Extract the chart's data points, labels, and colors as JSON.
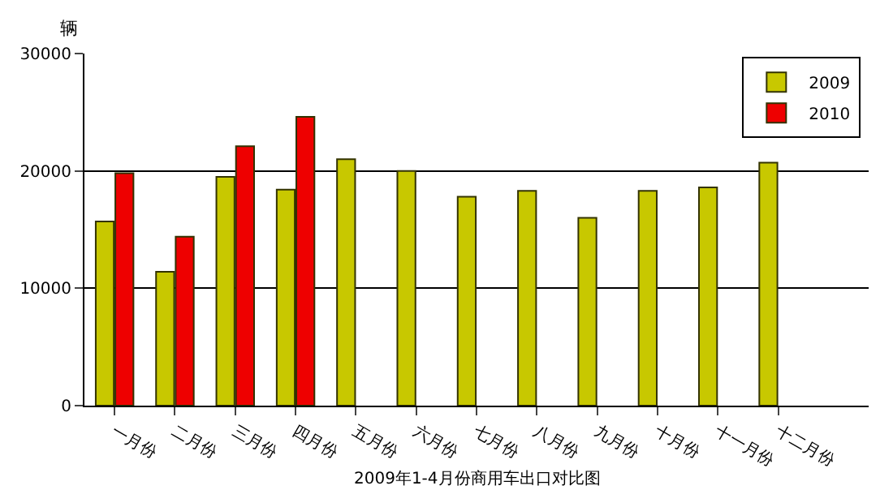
{
  "chart_data": {
    "type": "bar",
    "xlabel": "2009年1-4月份商用车出口对比图",
    "ylabel": "辆",
    "categories": [
      "一月份",
      "二月份",
      "三月份",
      "四月份",
      "五月份",
      "六月份",
      "七月份",
      "八月份",
      "九月份",
      "十月份",
      "十一月份",
      "十二月份",
      null
    ],
    "series": [
      {
        "name": "2009",
        "color": "#c8c800",
        "values": [
          15700,
          11400,
          19500,
          18400,
          21000,
          20000,
          17800,
          18300,
          16000,
          18300,
          18600,
          20700,
          null
        ]
      },
      {
        "name": "2010",
        "color": "#ee0000",
        "values": [
          19800,
          14400,
          22100,
          24600,
          null,
          null,
          null,
          null,
          null,
          null,
          null,
          null,
          null
        ]
      }
    ],
    "ylim": [
      0,
      30000
    ],
    "yticks": [
      0,
      10000,
      20000,
      30000
    ],
    "grid": "y",
    "legend": "top right"
  }
}
